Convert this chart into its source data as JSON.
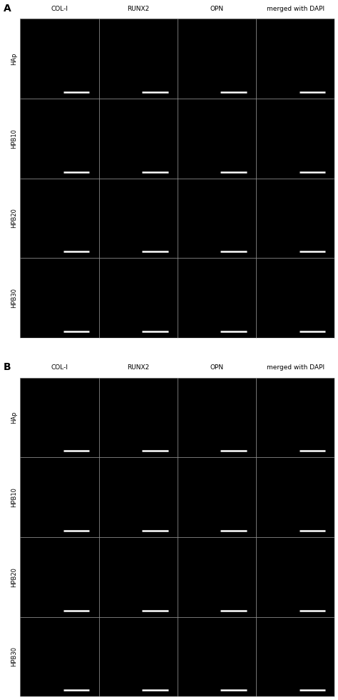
{
  "panel_A_label": "A",
  "panel_B_label": "B",
  "col_labels": [
    "COL-I",
    "RUNX2",
    "OPN",
    "merged with DAPI"
  ],
  "row_labels": [
    "HAp",
    "HPB10",
    "HPB20",
    "HPB30"
  ],
  "background_color": "#000000",
  "cell_bg": "#000000",
  "figure_bg": "#ffffff",
  "text_color_labels": "#000000",
  "separator_color": "#cccccc",
  "scale_bar_color": "#ffffff",
  "panel_label_fontsize": 10,
  "col_label_fontsize": 6.5,
  "row_label_fontsize": 6.0,
  "n_rows": 4,
  "n_cols": 4
}
